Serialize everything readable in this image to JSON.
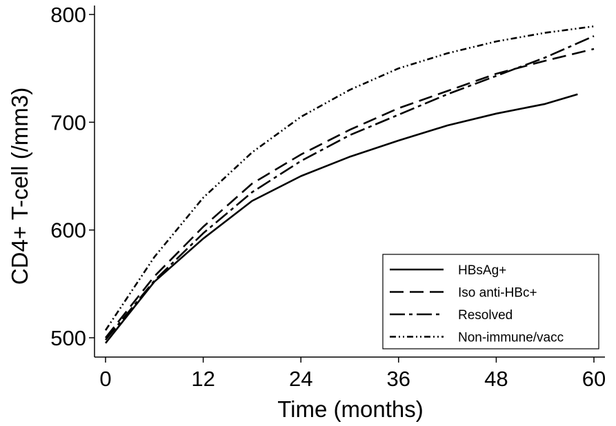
{
  "chart_data": {
    "type": "line",
    "xlabel": "Time (months)",
    "ylabel": "CD4+ T-cell (/mm3)",
    "xlim": [
      0,
      60
    ],
    "ylim": [
      500,
      800
    ],
    "x_ticks": [
      0,
      12,
      24,
      36,
      48,
      60
    ],
    "y_ticks": [
      500,
      600,
      700,
      800
    ],
    "grid": false,
    "legend_position": "bottom-right",
    "series": [
      {
        "name": "HBsAg+",
        "style": "solid",
        "color": "#000000",
        "x": [
          0,
          6,
          12,
          18,
          24,
          30,
          36,
          42,
          48,
          54,
          58
        ],
        "y": [
          495,
          552,
          592,
          627,
          650,
          668,
          683,
          697,
          708,
          717,
          726
        ]
      },
      {
        "name": "Iso anti-HBc+",
        "style": "dashed",
        "color": "#000000",
        "x": [
          0,
          6,
          12,
          18,
          24,
          30,
          36,
          42,
          48,
          54,
          60
        ],
        "y": [
          500,
          557,
          603,
          643,
          670,
          693,
          713,
          729,
          745,
          757,
          768
        ]
      },
      {
        "name": "Resolved",
        "style": "dashdot",
        "color": "#000000",
        "x": [
          0,
          6,
          12,
          18,
          24,
          30,
          36,
          42,
          48,
          54,
          60
        ],
        "y": [
          498,
          553,
          597,
          635,
          664,
          688,
          707,
          726,
          743,
          760,
          780
        ]
      },
      {
        "name": "Non-immune/vacc",
        "style": "dotdotdash",
        "color": "#000000",
        "x": [
          0,
          6,
          12,
          18,
          24,
          30,
          36,
          42,
          48,
          54,
          60
        ],
        "y": [
          507,
          575,
          630,
          672,
          705,
          730,
          750,
          764,
          775,
          783,
          789
        ]
      }
    ]
  }
}
